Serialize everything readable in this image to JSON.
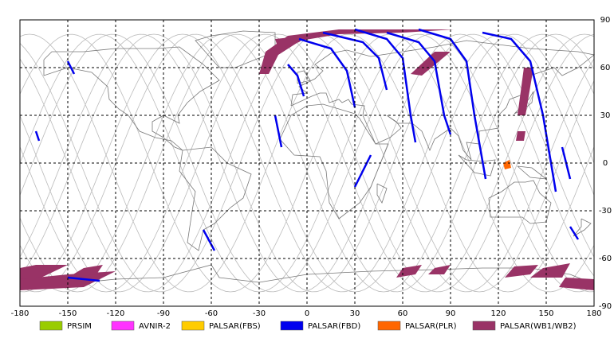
{
  "chart_data": {
    "type": "map",
    "xlim": [
      -180,
      180
    ],
    "ylim": [
      -90,
      90
    ],
    "xticks": [
      -180,
      -150,
      -120,
      -90,
      -60,
      -30,
      0,
      30,
      60,
      90,
      120,
      150,
      180
    ],
    "yticks": [
      -90,
      -60,
      -30,
      0,
      30,
      60,
      90
    ],
    "grid": true,
    "series": [
      {
        "name": "PRSIM",
        "color": "#99cc00"
      },
      {
        "name": "AVNIR-2",
        "color": "#ff33ff"
      },
      {
        "name": "PALSAR(FBS)",
        "color": "#ffcc00"
      },
      {
        "name": "PALSAR(FBD)",
        "color": "#0000ee"
      },
      {
        "name": "PALSAR(PLR)",
        "color": "#ff6600"
      },
      {
        "name": "PALSAR(WB1/WB2)",
        "color": "#993366"
      }
    ]
  }
}
